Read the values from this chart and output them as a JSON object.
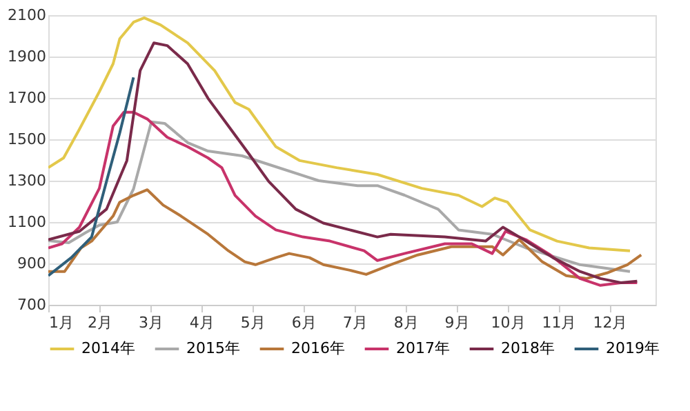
{
  "chart_data": {
    "type": "line",
    "xlim": [
      1,
      12.9
    ],
    "xticks": [
      {
        "value": 1,
        "label": "1月"
      },
      {
        "value": 2,
        "label": "2月"
      },
      {
        "value": 3,
        "label": "3月"
      },
      {
        "value": 4,
        "label": "4月"
      },
      {
        "value": 5,
        "label": "5月"
      },
      {
        "value": 6,
        "label": "6月"
      },
      {
        "value": 7,
        "label": "7月"
      },
      {
        "value": 8,
        "label": "8月"
      },
      {
        "value": 9,
        "label": "9月"
      },
      {
        "value": 10,
        "label": "10月"
      },
      {
        "value": 11,
        "label": "11月"
      },
      {
        "value": 12,
        "label": "12月"
      }
    ],
    "ylim": [
      700,
      2100
    ],
    "yticks": [
      700,
      900,
      1100,
      1300,
      1500,
      1700,
      1900,
      2100
    ],
    "grid": "y",
    "legend": "bottom",
    "marker": "none",
    "line_style": "solid",
    "series": [
      {
        "name": "2014年",
        "color": "#e3c84a",
        "x": [
          1.0,
          1.3,
          1.6,
          2.0,
          2.27,
          2.4,
          2.67,
          2.88,
          3.2,
          3.73,
          4.26,
          4.66,
          4.93,
          5.46,
          5.93,
          6.65,
          7.45,
          8.32,
          9.04,
          9.5,
          9.75,
          10.0,
          10.44,
          10.97,
          11.6,
          12.4
        ],
        "values": [
          1363,
          1410,
          1544,
          1730,
          1865,
          1986,
          2066,
          2087,
          2053,
          1966,
          1832,
          1678,
          1645,
          1464,
          1397,
          1363,
          1330,
          1263,
          1229,
          1175,
          1216,
          1196,
          1062,
          1008,
          975,
          961
        ]
      },
      {
        "name": "2015年",
        "color": "#a9a9a9",
        "x": [
          1.0,
          1.4,
          1.74,
          2.0,
          2.35,
          2.67,
          3.02,
          3.28,
          3.73,
          4.13,
          4.8,
          5.3,
          6.3,
          7.06,
          7.45,
          7.98,
          8.64,
          9.04,
          9.7,
          9.96,
          10.36,
          11.42,
          12.4
        ],
        "values": [
          1010,
          1000,
          1050,
          1085,
          1100,
          1260,
          1584,
          1577,
          1484,
          1443,
          1420,
          1380,
          1300,
          1276,
          1276,
          1230,
          1162,
          1062,
          1041,
          1015,
          975,
          894,
          861
        ]
      },
      {
        "name": "2016年",
        "color": "#b8773a",
        "x": [
          1.0,
          1.32,
          1.64,
          1.85,
          2.27,
          2.4,
          2.67,
          2.94,
          3.25,
          3.6,
          4.13,
          4.53,
          4.85,
          5.06,
          5.46,
          5.72,
          6.12,
          6.39,
          6.91,
          7.23,
          7.71,
          8.24,
          8.9,
          9.7,
          9.91,
          10.23,
          10.68,
          11.15,
          11.55,
          11.95,
          12.35,
          12.62
        ],
        "values": [
          861,
          861,
          975,
          1008,
          1129,
          1196,
          1229,
          1256,
          1182,
          1129,
          1041,
          961,
          908,
          894,
          928,
          948,
          928,
          894,
          867,
          847,
          894,
          941,
          981,
          981,
          941,
          1015,
          908,
          841,
          827,
          854,
          894,
          941
        ]
      },
      {
        "name": "2017年",
        "color": "#c8336a",
        "x": [
          1.0,
          1.27,
          1.61,
          2.0,
          2.27,
          2.48,
          2.67,
          2.94,
          3.33,
          3.73,
          4.13,
          4.4,
          4.66,
          5.06,
          5.46,
          5.99,
          6.52,
          7.19,
          7.45,
          7.98,
          8.77,
          9.3,
          9.7,
          9.96,
          10.36,
          10.84,
          11.42,
          11.82,
          12.22,
          12.54
        ],
        "values": [
          975,
          995,
          1075,
          1263,
          1564,
          1631,
          1631,
          1598,
          1510,
          1464,
          1410,
          1363,
          1229,
          1129,
          1062,
          1028,
          1008,
          961,
          914,
          948,
          995,
          995,
          948,
          1055,
          1015,
          941,
          827,
          794,
          807,
          807
        ]
      },
      {
        "name": "2018年",
        "color": "#7a2a4a",
        "x": [
          1.0,
          1.61,
          2.14,
          2.54,
          2.8,
          3.07,
          3.33,
          3.73,
          4.13,
          4.53,
          4.93,
          5.32,
          5.85,
          6.39,
          6.91,
          7.45,
          7.71,
          8.77,
          9.57,
          9.91,
          10.23,
          10.89,
          11.42,
          11.82,
          12.22,
          12.54
        ],
        "values": [
          1015,
          1055,
          1162,
          1397,
          1832,
          1966,
          1953,
          1865,
          1698,
          1564,
          1430,
          1296,
          1162,
          1095,
          1062,
          1028,
          1041,
          1028,
          1008,
          1075,
          1028,
          928,
          861,
          827,
          807,
          814
        ]
      },
      {
        "name": "2019年",
        "color": "#2f5f7a",
        "x": [
          1.0,
          1.45,
          1.85,
          2.14,
          2.4,
          2.67
        ],
        "values": [
          841,
          928,
          1028,
          1296,
          1531,
          1799
        ]
      }
    ]
  }
}
